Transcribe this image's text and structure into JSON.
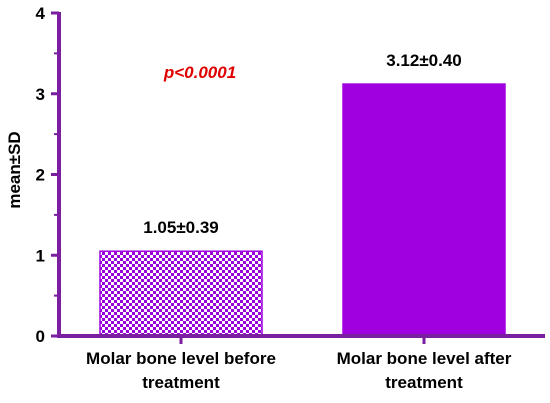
{
  "chart_data": {
    "type": "bar",
    "categories": [
      [
        "Molar bone level before",
        "treatment"
      ],
      [
        "Molar bone level after",
        "treatment"
      ]
    ],
    "values": [
      1.05,
      3.12
    ],
    "data_labels": [
      "1.05±0.39",
      "3.12±0.40"
    ],
    "ylabel": "mean±SD",
    "xlabel": "",
    "title": "",
    "ylim": [
      0,
      4
    ],
    "yticks": [
      "0",
      "1",
      "2",
      "3",
      "4"
    ],
    "annotation": "p<0.0001",
    "grid": false,
    "legend": "none",
    "bar_styles": [
      "checkered",
      "solid"
    ]
  },
  "colors": {
    "axis": "#7a1fa0",
    "bar_solid": "#a000e0",
    "bar_check": "#9a00d8",
    "annotation": "#e00000"
  }
}
